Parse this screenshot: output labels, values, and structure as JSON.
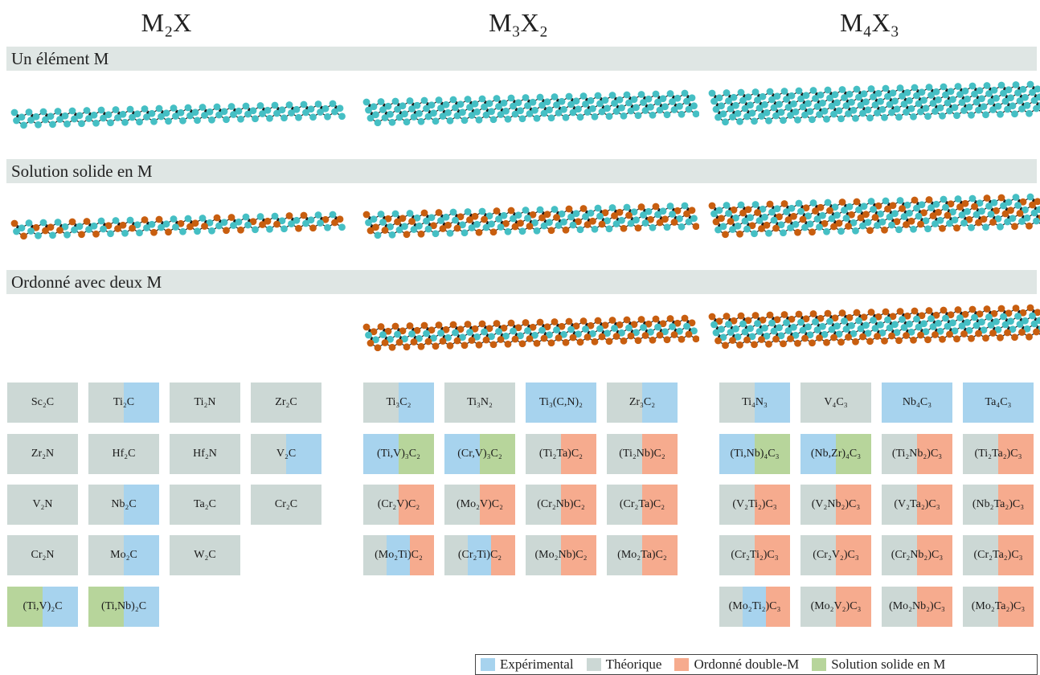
{
  "colors": {
    "experimental": "#a7d3ee",
    "theorique": "#ccd8d5",
    "ordonne": "#f6ab8e",
    "solution": "#b7d59b",
    "m_atom": "#45bfc4",
    "m2_atom": "#c85e0f",
    "x_atom": "#111111"
  },
  "columns": [
    {
      "label": "M₂X"
    },
    {
      "label": "M₃X₂"
    },
    {
      "label": "M₄X₃"
    }
  ],
  "sections": [
    {
      "label": "Un élément M"
    },
    {
      "label": "Solution solide en M"
    },
    {
      "label": "Ordonné avec deux M"
    }
  ],
  "tiles": {
    "m2x": [
      [
        {
          "text": "Sc₂C",
          "colors": [
            "theorique"
          ]
        },
        {
          "text": "Ti₂C",
          "colors": [
            "theorique",
            "experimental"
          ]
        },
        {
          "text": "Ti₂N",
          "colors": [
            "theorique"
          ]
        },
        {
          "text": "Zr₂C",
          "colors": [
            "theorique"
          ]
        }
      ],
      [
        {
          "text": "Zr₂N",
          "colors": [
            "theorique"
          ]
        },
        {
          "text": "Hf₂C",
          "colors": [
            "theorique"
          ]
        },
        {
          "text": "Hf₂N",
          "colors": [
            "theorique"
          ]
        },
        {
          "text": "V₂C",
          "colors": [
            "theorique",
            "experimental"
          ]
        }
      ],
      [
        {
          "text": "V₂N",
          "colors": [
            "theorique"
          ]
        },
        {
          "text": "Nb₂C",
          "colors": [
            "theorique",
            "experimental"
          ]
        },
        {
          "text": "Ta₂C",
          "colors": [
            "theorique"
          ]
        },
        {
          "text": "Cr₂C",
          "colors": [
            "theorique"
          ]
        }
      ],
      [
        {
          "text": "Cr₂N",
          "colors": [
            "theorique"
          ]
        },
        {
          "text": "Mo₂C",
          "colors": [
            "theorique",
            "experimental"
          ]
        },
        {
          "text": "W₂C",
          "colors": [
            "theorique"
          ]
        }
      ],
      [
        {
          "text": "(Ti,V)₂C",
          "colors": [
            "solution",
            "experimental"
          ]
        },
        {
          "text": "(Ti,Nb)₂C",
          "colors": [
            "solution",
            "experimental"
          ]
        }
      ]
    ],
    "m3x2": [
      [
        {
          "text": "Ti₃C₂",
          "colors": [
            "theorique",
            "experimental"
          ]
        },
        {
          "text": "Ti₃N₂",
          "colors": [
            "theorique"
          ]
        },
        {
          "text": "Ti₃(C,N)₂",
          "colors": [
            "experimental"
          ]
        },
        {
          "text": "Zr₃C₂",
          "colors": [
            "theorique",
            "experimental"
          ]
        }
      ],
      [
        {
          "text": "(Ti,V)₃C₂",
          "colors": [
            "experimental",
            "solution"
          ]
        },
        {
          "text": "(Cr,V)₃C₂",
          "colors": [
            "experimental",
            "solution"
          ]
        },
        {
          "text": "(Ti₂Ta)C₂",
          "colors": [
            "theorique",
            "ordonne"
          ]
        },
        {
          "text": "(Ti₂Nb)C₂",
          "colors": [
            "theorique",
            "ordonne"
          ]
        }
      ],
      [
        {
          "text": "(Cr₂V)C₂",
          "colors": [
            "theorique",
            "ordonne"
          ]
        },
        {
          "text": "(Mo₂V)C₂",
          "colors": [
            "theorique",
            "ordonne"
          ]
        },
        {
          "text": "(Cr₂Nb)C₂",
          "colors": [
            "theorique",
            "ordonne"
          ]
        },
        {
          "text": "(Cr₂Ta)C₂",
          "colors": [
            "theorique",
            "ordonne"
          ]
        }
      ],
      [
        {
          "text": "(Mo₂Ti)C₂",
          "colors": [
            "theorique",
            "experimental",
            "ordonne"
          ]
        },
        {
          "text": "(Cr₂Ti)C₂",
          "colors": [
            "theorique",
            "experimental",
            "ordonne"
          ]
        },
        {
          "text": "(Mo₂Nb)C₂",
          "colors": [
            "theorique",
            "ordonne"
          ]
        },
        {
          "text": "(Mo₂Ta)C₂",
          "colors": [
            "theorique",
            "ordonne"
          ]
        }
      ]
    ],
    "m4x3": [
      [
        {
          "text": "Ti₄N₃",
          "colors": [
            "theorique",
            "experimental"
          ]
        },
        {
          "text": "V₄C₃",
          "colors": [
            "theorique"
          ]
        },
        {
          "text": "Nb₄C₃",
          "colors": [
            "experimental"
          ]
        },
        {
          "text": "Ta₄C₃",
          "colors": [
            "experimental"
          ]
        }
      ],
      [
        {
          "text": "(Ti,Nb)₄C₃",
          "colors": [
            "experimental",
            "solution"
          ]
        },
        {
          "text": "(Nb,Zr)₄C₃",
          "colors": [
            "experimental",
            "solution"
          ]
        },
        {
          "text": "(Ti₂Nb₂)C₃",
          "colors": [
            "theorique",
            "ordonne"
          ]
        },
        {
          "text": "(Ti₂Ta₂)C₃",
          "colors": [
            "theorique",
            "ordonne"
          ]
        }
      ],
      [
        {
          "text": "(V₂Ti₂)C₃",
          "colors": [
            "theorique",
            "ordonne"
          ]
        },
        {
          "text": "(V₂Nb₂)C₃",
          "colors": [
            "theorique",
            "ordonne"
          ]
        },
        {
          "text": "(V₂Ta₂)C₃",
          "colors": [
            "theorique",
            "ordonne"
          ]
        },
        {
          "text": "(Nb₂Ta₂)C₃",
          "colors": [
            "theorique",
            "ordonne"
          ]
        }
      ],
      [
        {
          "text": "(Cr₂Ti₂)C₃",
          "colors": [
            "theorique",
            "ordonne"
          ]
        },
        {
          "text": "(Cr₂V₂)C₃",
          "colors": [
            "theorique",
            "ordonne"
          ]
        },
        {
          "text": "(Cr₂Nb₂)C₃",
          "colors": [
            "theorique",
            "ordonne"
          ]
        },
        {
          "text": "(Cr₂Ta₂)C₃",
          "colors": [
            "theorique",
            "ordonne"
          ]
        }
      ],
      [
        {
          "text": "(Mo₂Ti₂)C₃",
          "colors": [
            "theorique",
            "experimental",
            "ordonne"
          ]
        },
        {
          "text": "(Mo₂V₂)C₃",
          "colors": [
            "theorique",
            "ordonne"
          ]
        },
        {
          "text": "(Mo₂Nb₂)C₃",
          "colors": [
            "theorique",
            "ordonne"
          ]
        },
        {
          "text": "(Mo₂Ta₂)C₃",
          "colors": [
            "theorique",
            "ordonne"
          ]
        }
      ]
    ]
  },
  "legend": [
    {
      "key": "experimental",
      "label": "Expérimental"
    },
    {
      "key": "theorique",
      "label": "Théorique"
    },
    {
      "key": "ordonne",
      "label": "Ordonné double-M"
    },
    {
      "key": "solution",
      "label": "Solution solide en M"
    }
  ]
}
